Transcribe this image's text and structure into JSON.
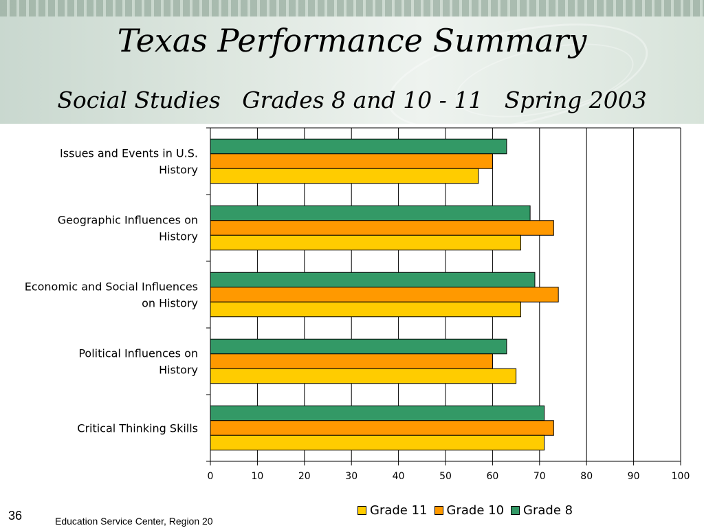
{
  "slide": {
    "title": "Texas Performance Summary",
    "subtitle": "Social Studies   Grades 8 and 10 - 11   Spring 2003",
    "slide_number": "36",
    "footer": "Education Service Center, Region 20"
  },
  "chart_data": {
    "type": "bar",
    "orientation": "horizontal",
    "categories": [
      "Issues and Events in U.S. History",
      "Geographic Influences on History",
      "Economic and Social Influences on History",
      "Political Influences on History",
      "Critical Thinking Skills"
    ],
    "series": [
      {
        "name": "Grade 8",
        "color": "#339966",
        "values": [
          63,
          68,
          69,
          63,
          71
        ]
      },
      {
        "name": "Grade 10",
        "color": "#ff9900",
        "values": [
          60,
          73,
          74,
          60,
          73
        ]
      },
      {
        "name": "Grade 11",
        "color": "#ffcc00",
        "values": [
          57,
          66,
          66,
          65,
          71
        ]
      }
    ],
    "xlim": [
      0,
      100
    ],
    "xticks": [
      "0",
      "10",
      "20",
      "30",
      "40",
      "50",
      "60",
      "70",
      "80",
      "90",
      "100"
    ],
    "grid": true,
    "legend_position": "bottom",
    "legend_order": [
      "Grade 11",
      "Grade 10",
      "Grade 8"
    ]
  }
}
